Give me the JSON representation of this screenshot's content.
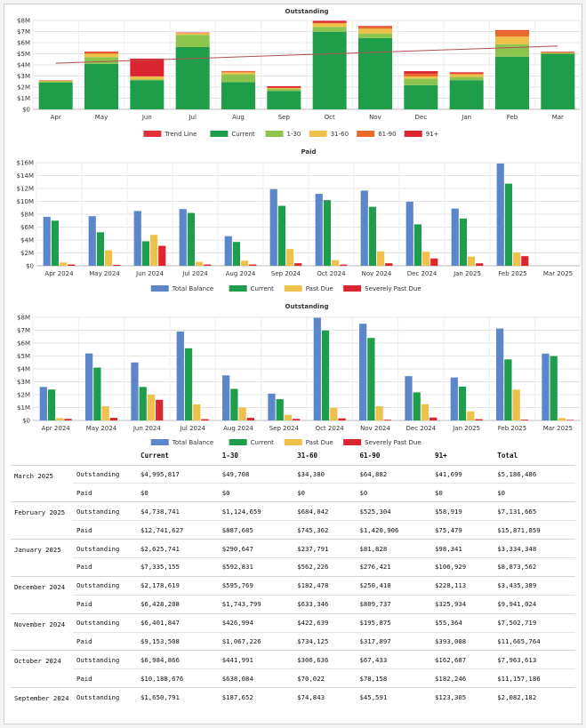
{
  "colors": {
    "trend": "#e0303a",
    "current": "#1e9e4a",
    "d1_30": "#8dc44d",
    "d31_60": "#efc14a",
    "d61_90": "#e96a2b",
    "d91": "#db2530",
    "total_balance": "#5b86c9",
    "past_due": "#efc14a",
    "severely_past_due": "#db2530",
    "trendline": "#b05050"
  },
  "chart_data": [
    {
      "type": "bar",
      "stacked": true,
      "title": "Outstanding",
      "categories": [
        "Apr",
        "May",
        "Jun",
        "Jul",
        "Aug",
        "Sep",
        "Oct",
        "Nov",
        "Dec",
        "Jan",
        "Feb",
        "Mar"
      ],
      "y_ticks": [
        "$0",
        "$1M",
        "$2M",
        "$3M",
        "$4M",
        "$5M",
        "$6M",
        "$7M",
        "$8M"
      ],
      "ylim": [
        0,
        8000000
      ],
      "grid": true,
      "legend_position": "bottom",
      "trend_line": {
        "name": "Trend Line",
        "start": 4150000,
        "end": 5700000
      },
      "series": [
        {
          "name": "Current",
          "color_key": "current",
          "values": [
            2400000,
            4100000,
            2600000,
            5600000,
            2450000,
            1650791,
            6984866,
            6401847,
            2178619,
            2625741,
            4738741,
            4995817
          ]
        },
        {
          "name": "1-30",
          "color_key": "d1_30",
          "values": [
            120000,
            600000,
            100000,
            1100000,
            700000,
            187652,
            441991,
            426994,
            595769,
            290647,
            1124659,
            49708
          ]
        },
        {
          "name": "31-60",
          "color_key": "d31_60",
          "values": [
            60000,
            300000,
            250000,
            150000,
            180000,
            74843,
            306636,
            422639,
            182478,
            237791,
            684042,
            34380
          ]
        },
        {
          "name": "61-90",
          "color_key": "d61_90",
          "values": [
            20000,
            150000,
            20000,
            40000,
            90000,
            45591,
            67433,
            195875,
            250410,
            81828,
            525304,
            64882
          ]
        },
        {
          "name": "91+",
          "color_key": "d91",
          "values": [
            20000,
            50000,
            1600000,
            30000,
            30000,
            123305,
            162687,
            55364,
            228113,
            98341,
            58919,
            41699
          ]
        }
      ]
    },
    {
      "type": "bar",
      "title": "Paid",
      "categories": [
        "Apr 2024",
        "May 2024",
        "Jun 2024",
        "Jul 2024",
        "Aug 2024",
        "Sep 2024",
        "Oct 2024",
        "Nov 2024",
        "Dec 2024",
        "Jan 2025",
        "Feb 2025",
        "Mar 2025"
      ],
      "y_ticks": [
        "$0",
        "$2M",
        "$4M",
        "$6M",
        "$8M",
        "$10M",
        "$12M",
        "$14M",
        "$16M"
      ],
      "ylim": [
        0,
        16000000
      ],
      "grid": true,
      "legend_position": "bottom",
      "series": [
        {
          "name": "Total Balance",
          "color_key": "total_balance",
          "values": [
            7600000,
            7700000,
            8500000,
            8800000,
            4600000,
            11900000,
            11157186,
            11665764,
            9941024,
            8873562,
            15871059,
            0
          ]
        },
        {
          "name": "Current",
          "color_key": "current",
          "values": [
            7000000,
            5200000,
            3800000,
            8200000,
            3700000,
            9300000,
            10188676,
            9153508,
            6428208,
            7335155,
            12741627,
            0
          ]
        },
        {
          "name": "Past Due",
          "color_key": "past_due",
          "values": [
            500000,
            2400000,
            4800000,
            600000,
            800000,
            2600000,
            886262,
            2224360,
            2187229,
            1431605,
            2054390,
            0
          ]
        },
        {
          "name": "Severely Past Due",
          "color_key": "severely_past_due",
          "values": [
            200000,
            150000,
            3100000,
            200000,
            200000,
            400000,
            182246,
            393008,
            1135711,
            383350,
            1496381,
            0
          ]
        }
      ]
    },
    {
      "type": "bar",
      "title": "Outstanding",
      "categories": [
        "Apr 2024",
        "May 2024",
        "Jun 2024",
        "Jul 2024",
        "Aug 2024",
        "Sep 2024",
        "Oct 2024",
        "Nov 2024",
        "Dec 2024",
        "Jan 2025",
        "Feb 2025",
        "Mar 2025"
      ],
      "y_ticks": [
        "$0",
        "$1M",
        "$2M",
        "$3M",
        "$4M",
        "$5M",
        "$6M",
        "$7M",
        "$8M"
      ],
      "ylim": [
        0,
        8000000
      ],
      "grid": true,
      "legend_position": "bottom",
      "series": [
        {
          "name": "Total Balance",
          "color_key": "total_balance",
          "values": [
            2600000,
            5200000,
            4500000,
            6900000,
            3500000,
            2082182,
            7963613,
            7502719,
            3435389,
            3334348,
            7131665,
            5186486
          ]
        },
        {
          "name": "Current",
          "color_key": "current",
          "values": [
            2400000,
            4100000,
            2600000,
            5600000,
            2450000,
            1650791,
            6984866,
            6401847,
            2178619,
            2625741,
            4738741,
            4995817
          ]
        },
        {
          "name": "Past Due",
          "color_key": "past_due",
          "values": [
            180000,
            1100000,
            2000000,
            1250000,
            1000000,
            431391,
            978737,
            1100872,
            1256657,
            708266,
            2392924,
            190669
          ]
        },
        {
          "name": "Severely Past Due",
          "color_key": "severely_past_due",
          "values": [
            120000,
            200000,
            1600000,
            100000,
            200000,
            123305,
            162687,
            55364,
            228113,
            98341,
            58919,
            41699
          ]
        }
      ]
    }
  ],
  "table": {
    "headers": [
      "",
      "",
      "Current",
      "1-30",
      "31-60",
      "61-90",
      "91+",
      "Total"
    ],
    "groups": [
      {
        "month": "March 2025",
        "rows": [
          {
            "label": "Outstanding",
            "cells": [
              "$4,995,817",
              "$49,708",
              "$34,380",
              "$64,882",
              "$41,699",
              "$5,186,486"
            ]
          },
          {
            "label": "Paid",
            "cells": [
              "$0",
              "$0",
              "$0",
              "$0",
              "$0",
              "$0"
            ]
          }
        ]
      },
      {
        "month": "February 2025",
        "rows": [
          {
            "label": "Outstanding",
            "cells": [
              "$4,738,741",
              "$1,124,659",
              "$684,042",
              "$525,304",
              "$58,919",
              "$7,131,665"
            ]
          },
          {
            "label": "Paid",
            "cells": [
              "$12,741,627",
              "$887,685",
              "$745,362",
              "$1,420,906",
              "$75,479",
              "$15,871,059"
            ]
          }
        ]
      },
      {
        "month": "January 2025",
        "rows": [
          {
            "label": "Outstanding",
            "cells": [
              "$2,625,741",
              "$290,647",
              "$237,791",
              "$81,828",
              "$98,341",
              "$3,334,348"
            ]
          },
          {
            "label": "Paid",
            "cells": [
              "$7,335,155",
              "$592,831",
              "$562,226",
              "$276,421",
              "$106,929",
              "$8,873,562"
            ]
          }
        ]
      },
      {
        "month": "December 2024",
        "rows": [
          {
            "label": "Outstanding",
            "cells": [
              "$2,178,619",
              "$595,769",
              "$182,478",
              "$250,410",
              "$228,113",
              "$3,435,389"
            ]
          },
          {
            "label": "Paid",
            "cells": [
              "$6,428,208",
              "$1,743,799",
              "$633,346",
              "$809,737",
              "$325,934",
              "$9,941,024"
            ]
          }
        ]
      },
      {
        "month": "November 2024",
        "rows": [
          {
            "label": "Outstanding",
            "cells": [
              "$6,401,847",
              "$426,994",
              "$422,639",
              "$195,875",
              "$55,364",
              "$7,502,719"
            ]
          },
          {
            "label": "Paid",
            "cells": [
              "$9,153,508",
              "$1,067,226",
              "$734,125",
              "$317,897",
              "$393,008",
              "$11,665,764"
            ]
          }
        ]
      },
      {
        "month": "October 2024",
        "rows": [
          {
            "label": "Outstanding",
            "cells": [
              "$6,984,866",
              "$441,991",
              "$306,636",
              "$67,433",
              "$162,687",
              "$7,963,613"
            ]
          },
          {
            "label": "Paid",
            "cells": [
              "$10,188,676",
              "$638,084",
              "$70,022",
              "$78,158",
              "$182,246",
              "$11,157,186"
            ]
          }
        ]
      },
      {
        "month": "September 2024",
        "rows": [
          {
            "label": "Outstanding",
            "cells": [
              "$1,650,791",
              "$187,652",
              "$74,843",
              "$45,591",
              "$123,305",
              "$2,082,182"
            ]
          }
        ]
      }
    ]
  }
}
